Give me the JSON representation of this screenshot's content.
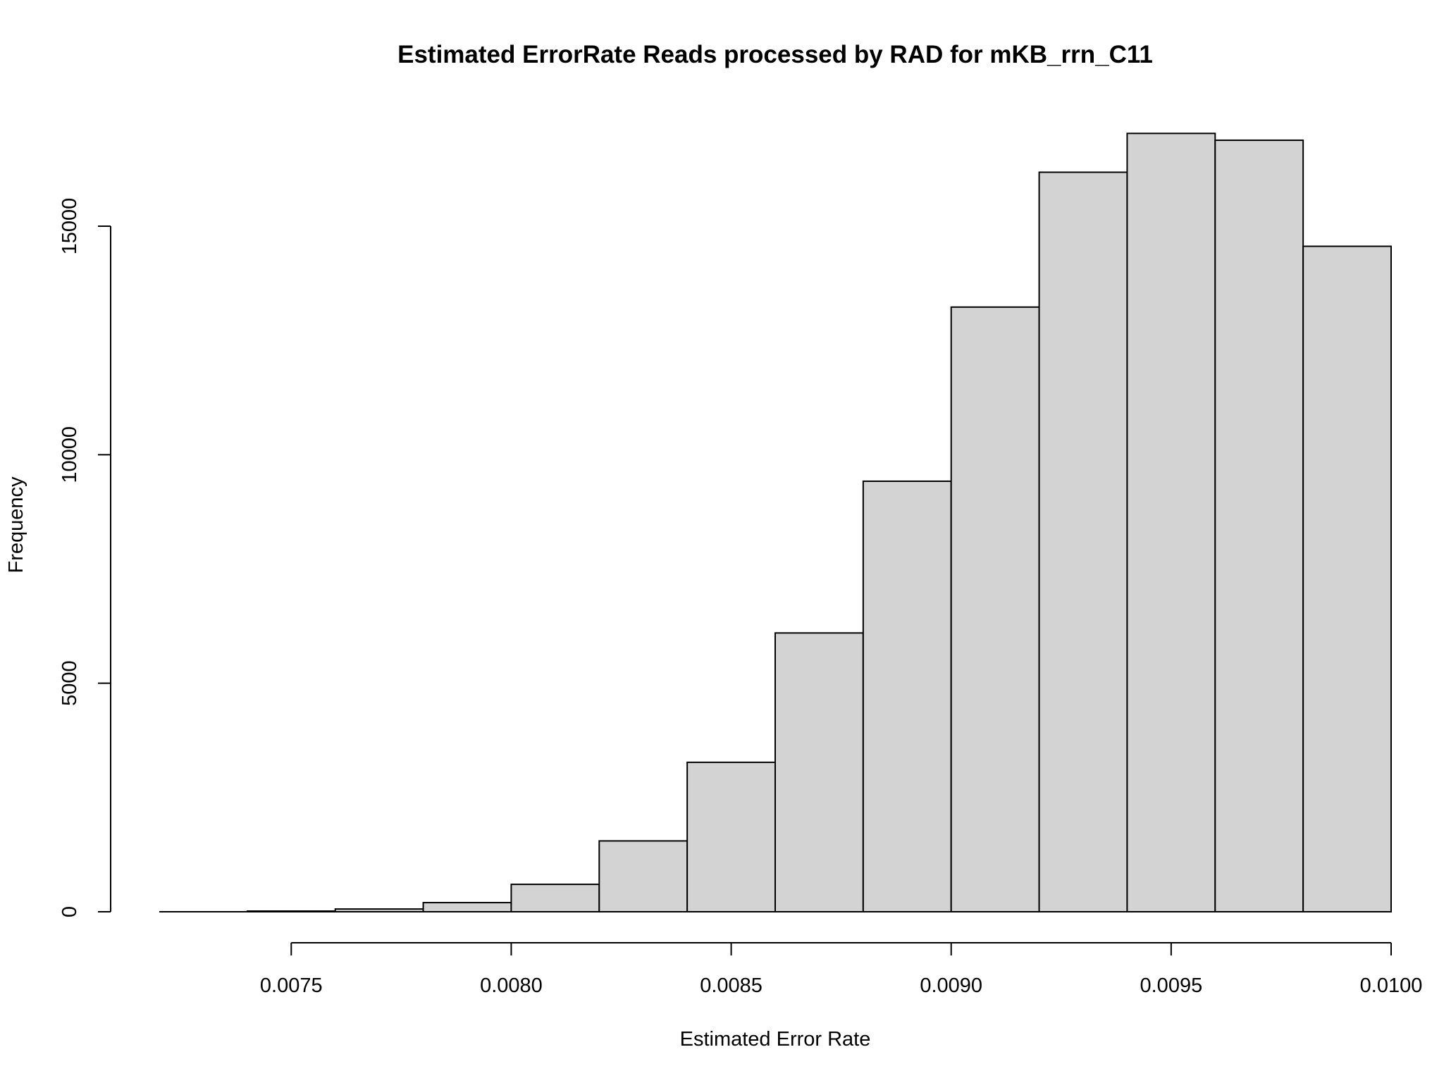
{
  "chart_data": {
    "type": "bar",
    "subtype": "histogram",
    "title": "Estimated ErrorRate Reads processed by RAD for  mKB_rrn_C11",
    "xlabel": "Estimated Error Rate",
    "ylabel": "Frequency",
    "bin_edges": [
      0.0072,
      0.0074,
      0.0076,
      0.0078,
      0.008,
      0.0082,
      0.0084,
      0.0086,
      0.0088,
      0.009,
      0.0092,
      0.0094,
      0.0096,
      0.0098,
      0.01
    ],
    "values": [
      0,
      15,
      60,
      200,
      600,
      1550,
      3270,
      6100,
      9420,
      13230,
      16180,
      17030,
      16880,
      14560
    ],
    "xlim": [
      0.0072,
      0.01
    ],
    "ylim": [
      0,
      17500
    ],
    "x_ticks": [
      0.0075,
      0.008,
      0.0085,
      0.009,
      0.0095,
      0.01
    ],
    "x_tick_labels": [
      "0.0075",
      "0.0080",
      "0.0085",
      "0.0090",
      "0.0095",
      "0.0100"
    ],
    "y_ticks": [
      0,
      5000,
      10000,
      15000
    ],
    "y_tick_labels": [
      "0",
      "5000",
      "10000",
      "15000"
    ],
    "bar_fill": "#d3d3d3",
    "bar_stroke": "#000000",
    "grid": false
  }
}
